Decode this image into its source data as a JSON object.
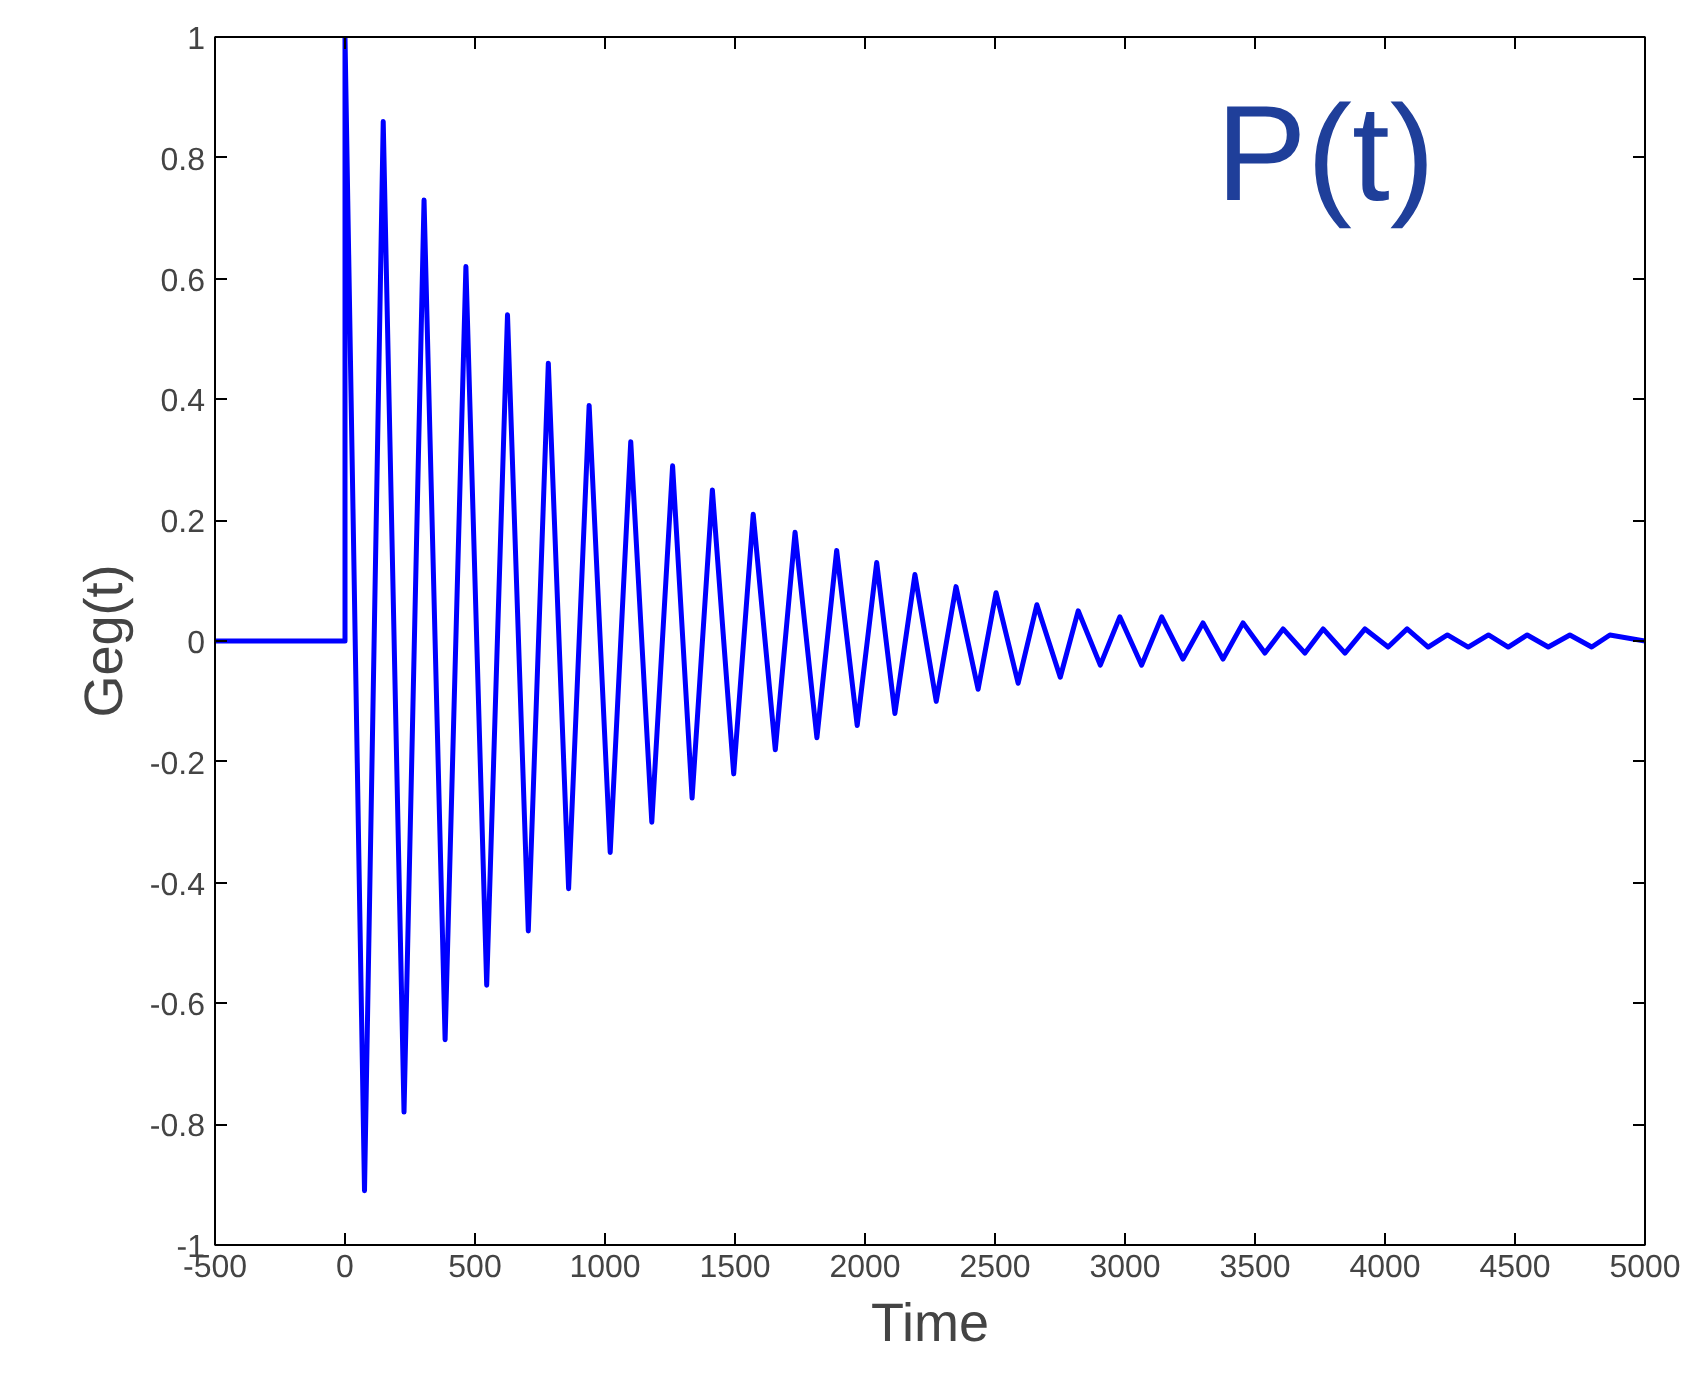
{
  "chart_data": {
    "type": "line",
    "xlabel": "Time",
    "ylabel": "Geg(t)",
    "annotations": [
      "P(t)"
    ],
    "xlim": [
      -500,
      5000
    ],
    "ylim": [
      -1,
      1
    ],
    "xticks": [
      -500,
      0,
      500,
      1000,
      1500,
      2000,
      2500,
      3000,
      3500,
      4000,
      4500,
      5000
    ],
    "yticks": [
      -1,
      -0.8,
      -0.6,
      -0.4,
      -0.2,
      0,
      0.2,
      0.4,
      0.6,
      0.8,
      1
    ],
    "grid": false,
    "marker": "none",
    "line_style": "solid",
    "series": [
      {
        "color": "#0000ff",
        "x": [
          -500,
          0,
          0,
          75,
          147,
          227,
          304,
          385,
          465,
          545,
          625,
          705,
          782,
          860,
          939,
          1020,
          1099,
          1180,
          1260,
          1335,
          1413,
          1495,
          1570,
          1655,
          1731,
          1815,
          1891,
          1970,
          2045,
          2115,
          2192,
          2274,
          2350,
          2435,
          2504,
          2589,
          2661,
          2751,
          2820,
          2905,
          2980,
          3064,
          3141,
          3223,
          3300,
          3377,
          3454,
          3538,
          3608,
          3692,
          3762,
          3846,
          3923,
          4012,
          4085,
          4166,
          4240,
          4320,
          4398,
          4474,
          4547,
          4628,
          4711,
          4795,
          4865,
          5000
        ],
        "values": [
          0,
          0,
          1,
          -0.91,
          0.86,
          -0.78,
          0.73,
          -0.66,
          0.62,
          -0.57,
          0.54,
          -0.48,
          0.46,
          -0.41,
          0.39,
          -0.35,
          0.33,
          -0.3,
          0.29,
          -0.26,
          0.25,
          -0.22,
          0.21,
          -0.18,
          0.18,
          -0.16,
          0.15,
          -0.14,
          0.13,
          -0.12,
          0.11,
          -0.1,
          0.09,
          -0.08,
          0.08,
          -0.07,
          0.06,
          -0.06,
          0.05,
          -0.04,
          0.04,
          -0.04,
          0.04,
          -0.03,
          0.03,
          -0.03,
          0.03,
          -0.02,
          0.02,
          -0.02,
          0.02,
          -0.02,
          0.02,
          -0.01,
          0.02,
          -0.01,
          0.01,
          -0.01,
          0.01,
          -0.01,
          0.01,
          -0.01,
          0.01,
          -0.01,
          0.01,
          0
        ]
      }
    ]
  }
}
